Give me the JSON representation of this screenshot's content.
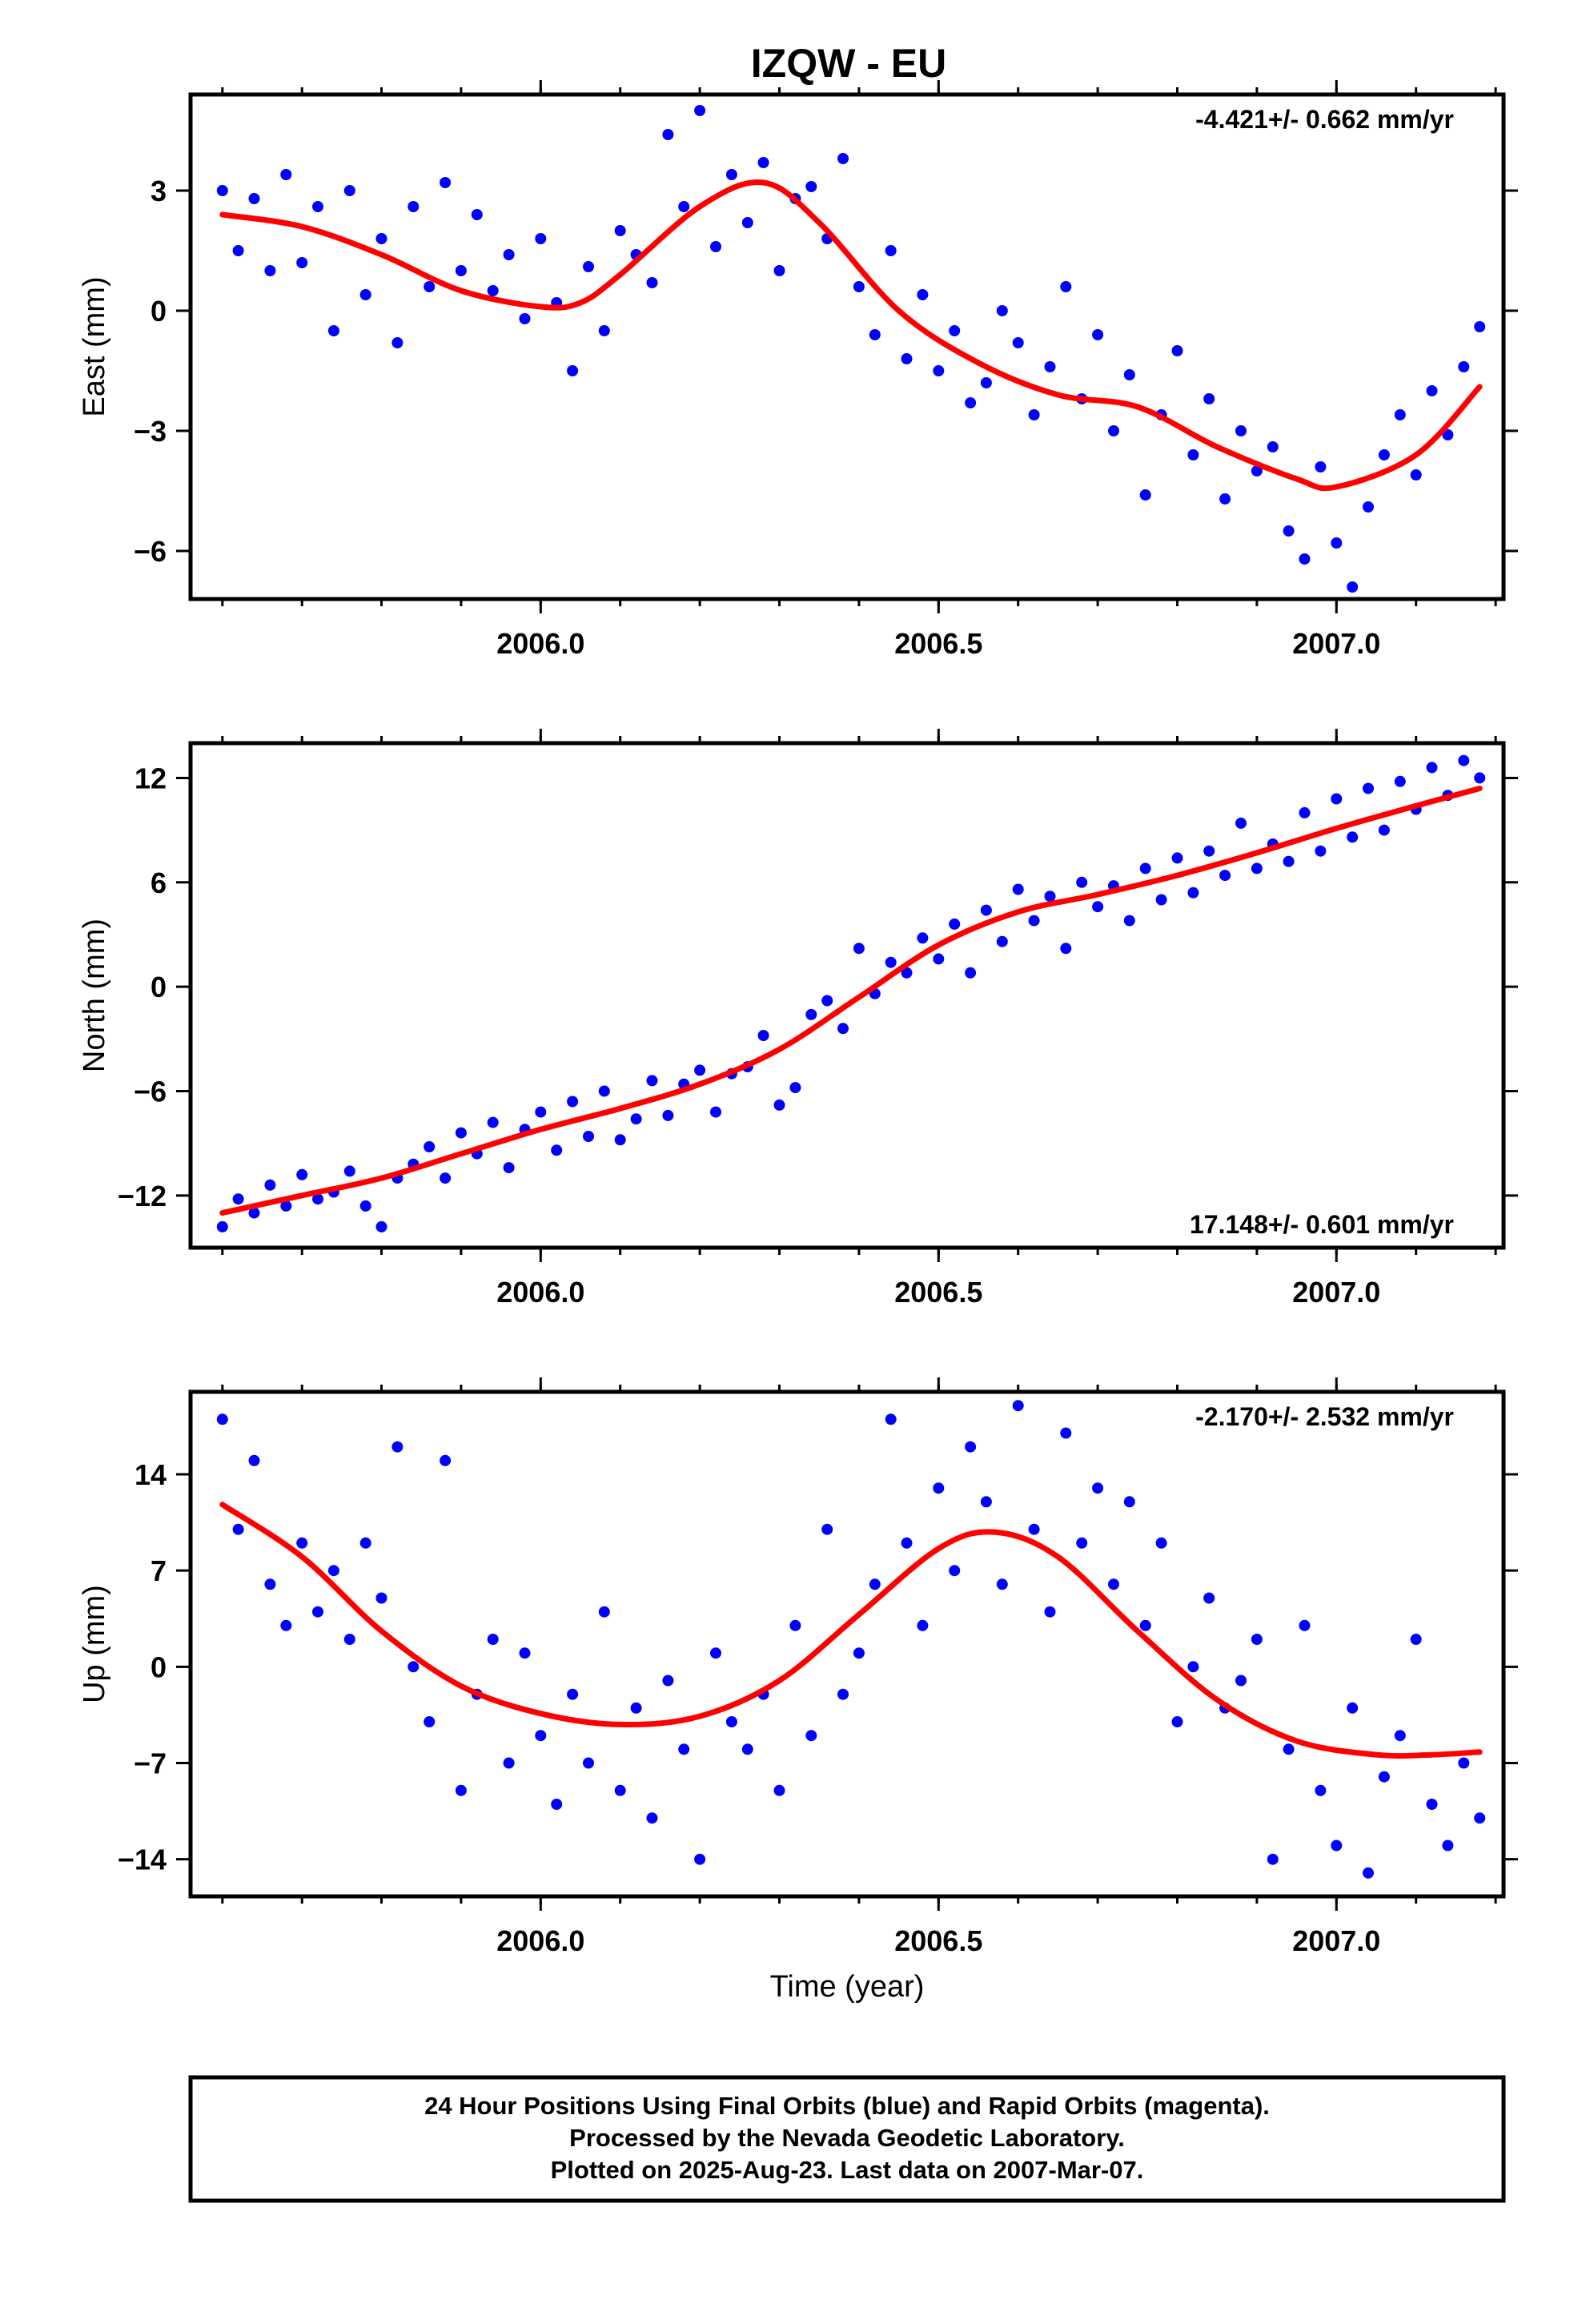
{
  "title": "IZQW - EU",
  "xlabel": "Time (year)",
  "footer": {
    "line1": "24 Hour Positions Using Final Orbits (blue) and Rapid Orbits (magenta).",
    "line2": "Processed by the Nevada Geodetic Laboratory.",
    "line3": "Plotted on 2025-Aug-23. Last data on 2007-Mar-07."
  },
  "colors": {
    "points": "#0000ff",
    "fit": "#ff0000",
    "frame": "#000000"
  },
  "chart_data": [
    {
      "type": "scatter",
      "component": "east",
      "ylabel": "East (mm)",
      "rate_label": "-4.421+/- 0.662 mm/yr",
      "rate_position": "top-right",
      "xlim": [
        2005.56,
        2007.21
      ],
      "ylim": [
        -7.2,
        5.4
      ],
      "xticks": [
        2006.0,
        2006.5,
        2007.0
      ],
      "xtick_labels": [
        "2006.0",
        "2006.5",
        "2007.0"
      ],
      "yticks": [
        3,
        0,
        -3,
        -6
      ],
      "ytick_labels": [
        "3",
        "0",
        "−3",
        "−6"
      ],
      "fit": {
        "name": "model",
        "x": [
          2005.6,
          2005.7,
          2005.8,
          2005.9,
          2006.0,
          2006.05,
          2006.1,
          2006.2,
          2006.28,
          2006.35,
          2006.45,
          2006.55,
          2006.65,
          2006.75,
          2006.85,
          2006.95,
          2007.0,
          2007.1,
          2007.18
        ],
        "y": [
          2.4,
          2.1,
          1.4,
          0.5,
          0.1,
          0.2,
          0.9,
          2.6,
          3.2,
          2.2,
          0.0,
          -1.3,
          -2.1,
          -2.4,
          -3.4,
          -4.2,
          -4.4,
          -3.6,
          -1.9
        ]
      },
      "points": {
        "name": "daily positions",
        "x": [
          2005.6,
          2005.62,
          2005.64,
          2005.66,
          2005.68,
          2005.7,
          2005.72,
          2005.74,
          2005.76,
          2005.78,
          2005.8,
          2005.82,
          2005.84,
          2005.86,
          2005.88,
          2005.9,
          2005.92,
          2005.94,
          2005.96,
          2005.98,
          2006.0,
          2006.02,
          2006.04,
          2006.06,
          2006.08,
          2006.1,
          2006.12,
          2006.14,
          2006.16,
          2006.18,
          2006.2,
          2006.22,
          2006.24,
          2006.26,
          2006.28,
          2006.3,
          2006.32,
          2006.34,
          2006.36,
          2006.38,
          2006.4,
          2006.42,
          2006.44,
          2006.46,
          2006.48,
          2006.5,
          2006.52,
          2006.54,
          2006.56,
          2006.58,
          2006.6,
          2006.62,
          2006.64,
          2006.66,
          2006.68,
          2006.7,
          2006.72,
          2006.74,
          2006.76,
          2006.78,
          2006.8,
          2006.82,
          2006.84,
          2006.86,
          2006.88,
          2006.9,
          2006.92,
          2006.94,
          2006.96,
          2006.98,
          2007.0,
          2007.02,
          2007.04,
          2007.06,
          2007.08,
          2007.1,
          2007.12,
          2007.14,
          2007.16,
          2007.18
        ],
        "y": [
          3.0,
          1.5,
          2.8,
          1.0,
          3.4,
          1.2,
          2.6,
          -0.5,
          3.0,
          0.4,
          1.8,
          -0.8,
          2.6,
          0.6,
          3.2,
          1.0,
          2.4,
          0.5,
          1.4,
          -0.2,
          1.8,
          0.2,
          -1.5,
          1.1,
          -0.5,
          2.0,
          1.4,
          0.7,
          4.4,
          2.6,
          5.0,
          1.6,
          3.4,
          2.2,
          3.7,
          1.0,
          2.8,
          3.1,
          1.8,
          3.8,
          0.6,
          -0.6,
          1.5,
          -1.2,
          0.4,
          -1.5,
          -0.5,
          -2.3,
          -1.8,
          0.0,
          -0.8,
          -2.6,
          -1.4,
          0.6,
          -2.2,
          -0.6,
          -3.0,
          -1.6,
          -4.6,
          -2.6,
          -1.0,
          -3.6,
          -2.2,
          -4.7,
          -3.0,
          -4.0,
          -3.4,
          -5.5,
          -6.2,
          -3.9,
          -5.8,
          -6.9,
          -4.9,
          -3.6,
          -2.6,
          -4.1,
          -2.0,
          -3.1,
          -1.4,
          -0.4
        ]
      }
    },
    {
      "type": "scatter",
      "component": "north",
      "ylabel": "North (mm)",
      "rate_label": "17.148+/- 0.601 mm/yr",
      "rate_position": "bottom-right",
      "xlim": [
        2005.56,
        2007.21
      ],
      "ylim": [
        -15.0,
        14.0
      ],
      "xticks": [
        2006.0,
        2006.5,
        2007.0
      ],
      "xtick_labels": [
        "2006.0",
        "2006.5",
        "2007.0"
      ],
      "yticks": [
        12,
        6,
        0,
        -6,
        -12
      ],
      "ytick_labels": [
        "12",
        "6",
        "0",
        "−6",
        "−12"
      ],
      "fit": {
        "name": "model",
        "x": [
          2005.6,
          2005.7,
          2005.8,
          2005.9,
          2006.0,
          2006.1,
          2006.2,
          2006.3,
          2006.4,
          2006.5,
          2006.6,
          2006.7,
          2006.8,
          2006.9,
          2007.0,
          2007.1,
          2007.18
        ],
        "y": [
          -13.0,
          -12.0,
          -11.0,
          -9.6,
          -8.2,
          -7.0,
          -5.6,
          -3.6,
          -0.6,
          2.4,
          4.3,
          5.3,
          6.4,
          7.7,
          9.1,
          10.4,
          11.4
        ]
      },
      "points": {
        "name": "daily positions",
        "x": [
          2005.6,
          2005.62,
          2005.64,
          2005.66,
          2005.68,
          2005.7,
          2005.72,
          2005.74,
          2005.76,
          2005.78,
          2005.8,
          2005.82,
          2005.84,
          2005.86,
          2005.88,
          2005.9,
          2005.92,
          2005.94,
          2005.96,
          2005.98,
          2006.0,
          2006.02,
          2006.04,
          2006.06,
          2006.08,
          2006.1,
          2006.12,
          2006.14,
          2006.16,
          2006.18,
          2006.2,
          2006.22,
          2006.24,
          2006.26,
          2006.28,
          2006.3,
          2006.32,
          2006.34,
          2006.36,
          2006.38,
          2006.4,
          2006.42,
          2006.44,
          2006.46,
          2006.48,
          2006.5,
          2006.52,
          2006.54,
          2006.56,
          2006.58,
          2006.6,
          2006.62,
          2006.64,
          2006.66,
          2006.68,
          2006.7,
          2006.72,
          2006.74,
          2006.76,
          2006.78,
          2006.8,
          2006.82,
          2006.84,
          2006.86,
          2006.88,
          2006.9,
          2006.92,
          2006.94,
          2006.96,
          2006.98,
          2007.0,
          2007.02,
          2007.04,
          2007.06,
          2007.08,
          2007.1,
          2007.12,
          2007.14,
          2007.16,
          2007.18
        ],
        "y": [
          -13.8,
          -12.2,
          -13.0,
          -11.4,
          -12.6,
          -10.8,
          -12.2,
          -11.8,
          -10.6,
          -12.6,
          -13.8,
          -11.0,
          -10.2,
          -9.2,
          -11.0,
          -8.4,
          -9.6,
          -7.8,
          -10.4,
          -8.2,
          -7.2,
          -9.4,
          -6.6,
          -8.6,
          -6.0,
          -8.8,
          -7.6,
          -5.4,
          -7.4,
          -5.6,
          -4.8,
          -7.2,
          -5.0,
          -4.6,
          -2.8,
          -6.8,
          -5.8,
          -1.6,
          -0.8,
          -2.4,
          2.2,
          -0.4,
          1.4,
          0.8,
          2.8,
          1.6,
          3.6,
          0.8,
          4.4,
          2.6,
          5.6,
          3.8,
          5.2,
          2.2,
          6.0,
          4.6,
          5.8,
          3.8,
          6.8,
          5.0,
          7.4,
          5.4,
          7.8,
          6.4,
          9.4,
          6.8,
          8.2,
          7.2,
          10.0,
          7.8,
          10.8,
          8.6,
          11.4,
          9.0,
          11.8,
          10.2,
          12.6,
          11.0,
          13.0,
          12.0
        ]
      }
    },
    {
      "type": "scatter",
      "component": "up",
      "ylabel": "Up (mm)",
      "rate_label": "-2.170+/- 2.532 mm/yr",
      "rate_position": "top-right",
      "xlim": [
        2005.56,
        2007.21
      ],
      "ylim": [
        -16.7,
        20.0
      ],
      "xticks": [
        2006.0,
        2006.5,
        2007.0
      ],
      "xtick_labels": [
        "2006.0",
        "2006.5",
        "2007.0"
      ],
      "yticks": [
        14,
        7,
        0,
        -7,
        -14
      ],
      "ytick_labels": [
        "14",
        "7",
        "0",
        "−7",
        "−14"
      ],
      "fit": {
        "name": "model",
        "x": [
          2005.6,
          2005.7,
          2005.8,
          2005.9,
          2006.0,
          2006.1,
          2006.2,
          2006.3,
          2006.4,
          2006.5,
          2006.57,
          2006.65,
          2006.75,
          2006.85,
          2006.95,
          2007.05,
          2007.12,
          2007.18
        ],
        "y": [
          11.8,
          8.0,
          2.6,
          -1.4,
          -3.4,
          -4.2,
          -3.6,
          -1.0,
          3.8,
          8.6,
          9.8,
          8.0,
          2.6,
          -2.4,
          -5.4,
          -6.4,
          -6.4,
          -6.2
        ]
      },
      "points": {
        "name": "daily positions",
        "x": [
          2005.6,
          2005.62,
          2005.64,
          2005.66,
          2005.68,
          2005.7,
          2005.72,
          2005.74,
          2005.76,
          2005.78,
          2005.8,
          2005.82,
          2005.84,
          2005.86,
          2005.88,
          2005.9,
          2005.92,
          2005.94,
          2005.96,
          2005.98,
          2006.0,
          2006.02,
          2006.04,
          2006.06,
          2006.08,
          2006.1,
          2006.12,
          2006.14,
          2006.16,
          2006.18,
          2006.2,
          2006.22,
          2006.24,
          2006.26,
          2006.28,
          2006.3,
          2006.32,
          2006.34,
          2006.36,
          2006.38,
          2006.4,
          2006.42,
          2006.44,
          2006.46,
          2006.48,
          2006.5,
          2006.52,
          2006.54,
          2006.56,
          2006.58,
          2006.6,
          2006.62,
          2006.64,
          2006.66,
          2006.68,
          2006.7,
          2006.72,
          2006.74,
          2006.76,
          2006.78,
          2006.8,
          2006.82,
          2006.84,
          2006.86,
          2006.88,
          2006.9,
          2006.92,
          2006.94,
          2006.96,
          2006.98,
          2007.0,
          2007.02,
          2007.04,
          2007.06,
          2007.08,
          2007.1,
          2007.12,
          2007.14,
          2007.16,
          2007.18
        ],
        "y": [
          18.0,
          10.0,
          15.0,
          6.0,
          3.0,
          9.0,
          4.0,
          7.0,
          2.0,
          9.0,
          5.0,
          16.0,
          0.0,
          -4.0,
          15.0,
          -9.0,
          -2.0,
          2.0,
          -7.0,
          1.0,
          -5.0,
          -10.0,
          -2.0,
          -7.0,
          4.0,
          -9.0,
          -3.0,
          -11.0,
          -1.0,
          -6.0,
          -14.0,
          1.0,
          -4.0,
          -6.0,
          -2.0,
          -9.0,
          3.0,
          -5.0,
          10.0,
          -2.0,
          1.0,
          6.0,
          18.0,
          9.0,
          3.0,
          13.0,
          7.0,
          16.0,
          12.0,
          6.0,
          19.0,
          10.0,
          4.0,
          17.0,
          9.0,
          13.0,
          6.0,
          12.0,
          3.0,
          9.0,
          -4.0,
          0.0,
          5.0,
          -3.0,
          -1.0,
          2.0,
          -14.0,
          -6.0,
          3.0,
          -9.0,
          -13.0,
          -3.0,
          -15.0,
          -8.0,
          -5.0,
          2.0,
          -10.0,
          -13.0,
          -7.0,
          -11.0
        ]
      }
    }
  ]
}
